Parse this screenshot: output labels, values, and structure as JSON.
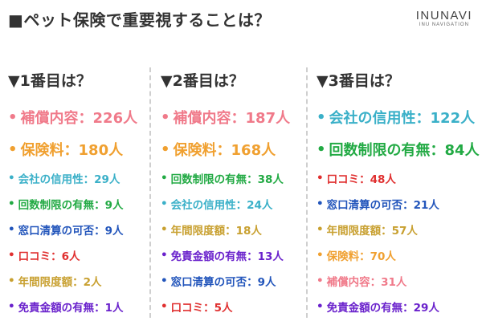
{
  "title": "■ペット保険で重要視することは？",
  "logo": {
    "brand": "INUNAVI",
    "sub": "INU NAVIGATION"
  },
  "colors": {
    "補償内容": "#f07a8a",
    "保険料": "#f0a030",
    "会社の信用性": "#3ab0c8",
    "回数制限の有無": "#22aa44",
    "窓口清算の可否": "#2255bb",
    "口コミ": "#e03030",
    "年間限度額": "#c8a030",
    "免責金額の有無": "#6a22cc"
  },
  "chart_data": [
    {
      "type": "table",
      "title": "▼1番目は？",
      "items": [
        {
          "label": "補償内容",
          "value": 226,
          "unit": "人",
          "text": "補償内容：226人"
        },
        {
          "label": "保険料",
          "value": 180,
          "unit": "人",
          "text": "保険料：180人"
        },
        {
          "label": "会社の信用性",
          "value": 29,
          "unit": "人",
          "text": "会社の信用性：29人"
        },
        {
          "label": "回数制限の有無",
          "value": 9,
          "unit": "人",
          "text": "回数制限の有無：9人"
        },
        {
          "label": "窓口清算の可否",
          "value": 9,
          "unit": "人",
          "text": "窓口清算の可否：9人"
        },
        {
          "label": "口コミ",
          "value": 6,
          "unit": "人",
          "text": "口コミ：6人"
        },
        {
          "label": "年間限度額",
          "value": 2,
          "unit": "人",
          "text": "年間限度額：2人"
        },
        {
          "label": "免責金額の有無",
          "value": 1,
          "unit": "人",
          "text": "免責金額の有無：1人"
        }
      ]
    },
    {
      "type": "table",
      "title": "▼2番目は？",
      "items": [
        {
          "label": "補償内容",
          "value": 187,
          "unit": "人",
          "text": "補償内容：187人"
        },
        {
          "label": "保険料",
          "value": 168,
          "unit": "人",
          "text": "保険料：168人"
        },
        {
          "label": "回数制限の有無",
          "value": 38,
          "unit": "人",
          "text": "回数制限の有無：38人"
        },
        {
          "label": "会社の信用性",
          "value": 24,
          "unit": "人",
          "text": "会社の信用性：24人"
        },
        {
          "label": "年間限度額",
          "value": 18,
          "unit": "人",
          "text": "年間限度額：18人"
        },
        {
          "label": "免責金額の有無",
          "value": 13,
          "unit": "人",
          "text": "免責金額の有無：13人"
        },
        {
          "label": "窓口清算の可否",
          "value": 9,
          "unit": "人",
          "text": "窓口清算の可否：9人"
        },
        {
          "label": "口コミ",
          "value": 5,
          "unit": "人",
          "text": "口コミ：5人"
        }
      ]
    },
    {
      "type": "table",
      "title": "▼3番目は？",
      "items": [
        {
          "label": "会社の信用性",
          "value": 122,
          "unit": "人",
          "text": "会社の信用性：122人"
        },
        {
          "label": "回数制限の有無",
          "value": 84,
          "unit": "人",
          "text": "回数制限の有無：84人"
        },
        {
          "label": "口コミ",
          "value": 48,
          "unit": "人",
          "text": "口コミ：48人"
        },
        {
          "label": "窓口清算の可否",
          "value": 21,
          "unit": "人",
          "text": "窓口清算の可否：21人"
        },
        {
          "label": "年間限度額",
          "value": 57,
          "unit": "人",
          "text": "年間限度額：57人"
        },
        {
          "label": "保険料",
          "value": 70,
          "unit": "人",
          "text": "保険料：70人"
        },
        {
          "label": "補償内容",
          "value": 31,
          "unit": "人",
          "text": "補償内容：31人"
        },
        {
          "label": "免責金額の有無",
          "value": 29,
          "unit": "人",
          "text": "免責金額の有無：29人"
        }
      ]
    }
  ]
}
